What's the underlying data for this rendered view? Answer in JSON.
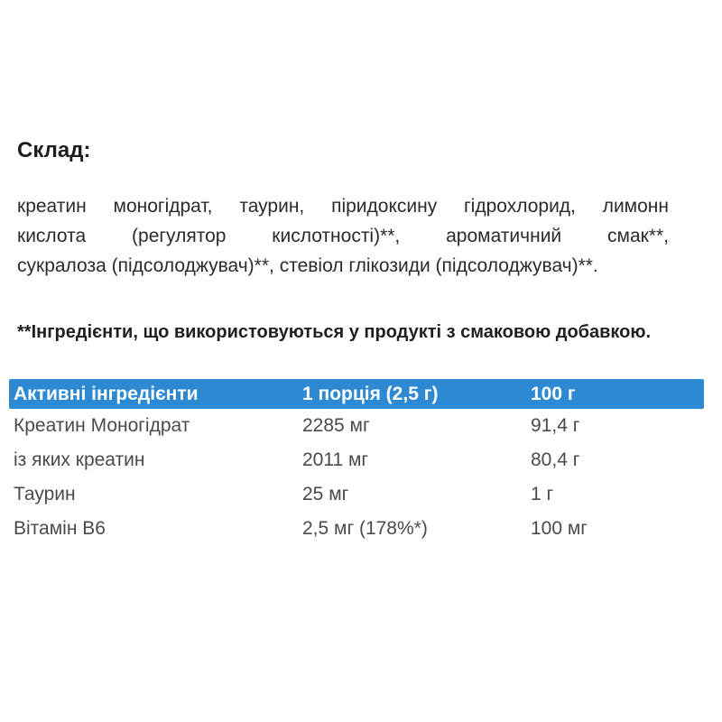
{
  "composition": {
    "title": "Склад:",
    "lines": [
      "креатин моногідрат, таурин, піридоксину гідрохлорид, лимонн",
      "кислота (регулятор кислотності)**, ароматичний смак**,",
      "сукралоза (підсолоджувач)**, стевіол глікозиди (підсолоджувач)**."
    ]
  },
  "note": "**Інгредієнти, що використовуються у продукті з смаковою добавкою.",
  "table": {
    "header_bg": "#2d8ad2",
    "header_text_color": "#ffffff",
    "columns": [
      "Активні інгредієнти",
      "1 порція (2,5 г)",
      "100 г"
    ],
    "rows": [
      {
        "name": "Креатин Моногідрат",
        "per_serving": "2285 мг",
        "per_100g": "91,4 г"
      },
      {
        "name": "із яких креатин",
        "per_serving": "2011 мг",
        "per_100g": "80,4 г"
      },
      {
        "name": "Таурин",
        "per_serving": "25 мг",
        "per_100g": "1 г"
      },
      {
        "name": "Вітамін В6",
        "per_serving": "2,5 мг (178%*)",
        "per_100g": "100 мг"
      }
    ]
  }
}
